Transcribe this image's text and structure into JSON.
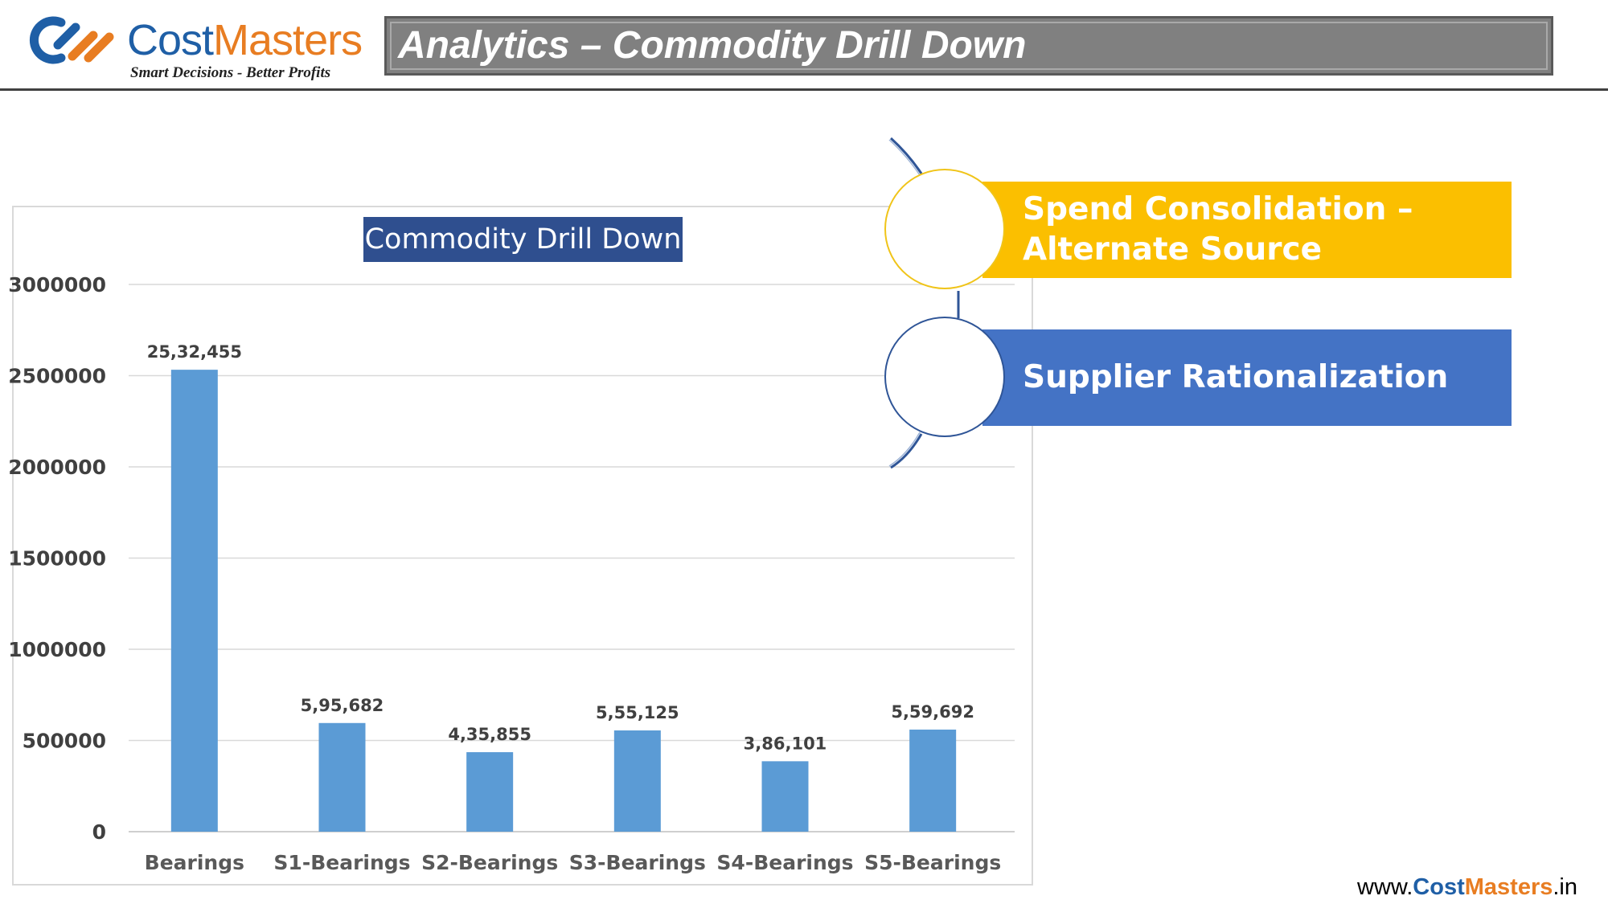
{
  "header": {
    "logo": {
      "brand_part1": "Cost",
      "brand_part2": "Masters",
      "tagline": "Smart Decisions - Better Profits",
      "colors": {
        "blue": "#1f5fa6",
        "orange": "#e87d22"
      }
    },
    "title": "Analytics – Commodity Drill Down"
  },
  "chart_data": {
    "type": "bar",
    "title": "Commodity Drill Down",
    "categories": [
      "Bearings",
      "S1-Bearings",
      "S2-Bearings",
      "S3-Bearings",
      "S4-Bearings",
      "S5-Bearings"
    ],
    "values": [
      2532455,
      595682,
      435855,
      555125,
      386101,
      559692
    ],
    "data_labels": [
      "25,32,455",
      "5,95,682",
      "4,35,855",
      "5,55,125",
      "3,86,101",
      "5,59,692"
    ],
    "y_ticks": [
      "0",
      "500000",
      "1000000",
      "1500000",
      "2000000",
      "2500000",
      "3000000"
    ],
    "ylim": [
      0,
      3000000
    ],
    "xlabel": "",
    "ylabel": "",
    "grid": true,
    "bar_color": "#5b9bd5"
  },
  "callouts": [
    {
      "line1": "Spend Consolidation –",
      "line2": "Alternate Source",
      "color": "#fbbf00"
    },
    {
      "text": "Supplier Rationalization",
      "color": "#4473c5"
    }
  ],
  "footer": {
    "prefix": "www.",
    "part1": "Cost",
    "part2": "Masters",
    "suffix": ".in"
  }
}
